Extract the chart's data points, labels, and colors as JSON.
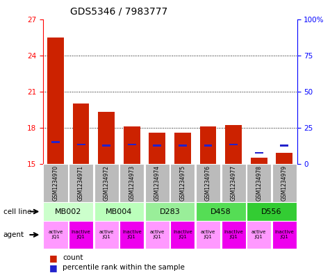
{
  "title": "GDS5346 / 7983777",
  "samples": [
    "GSM1234970",
    "GSM1234971",
    "GSM1234972",
    "GSM1234973",
    "GSM1234974",
    "GSM1234975",
    "GSM1234976",
    "GSM1234977",
    "GSM1234978",
    "GSM1234979"
  ],
  "red_bar_top": [
    25.5,
    20.0,
    19.3,
    18.1,
    17.6,
    17.6,
    18.1,
    18.2,
    15.5,
    15.9
  ],
  "blue_marker": [
    16.8,
    16.6,
    16.5,
    16.6,
    16.5,
    16.5,
    16.5,
    16.6,
    15.9,
    16.5
  ],
  "ymin": 15,
  "ymax": 27,
  "yticks": [
    15,
    18,
    21,
    24,
    27
  ],
  "pct_ticks_y": [
    15,
    18,
    21,
    24,
    27
  ],
  "pct_labels": [
    "0",
    "25",
    "50",
    "75",
    "100%"
  ],
  "cell_lines": [
    {
      "label": "MB002",
      "cols": [
        0,
        1
      ],
      "color": "#ccffcc"
    },
    {
      "label": "MB004",
      "cols": [
        2,
        3
      ],
      "color": "#bbffbb"
    },
    {
      "label": "D283",
      "cols": [
        4,
        5
      ],
      "color": "#99ee99"
    },
    {
      "label": "D458",
      "cols": [
        6,
        7
      ],
      "color": "#55dd55"
    },
    {
      "label": "D556",
      "cols": [
        8,
        9
      ],
      "color": "#33cc33"
    }
  ],
  "agents": [
    "active\nJQ1",
    "inactive\nJQ1",
    "active\nJQ1",
    "inactive\nJQ1",
    "active\nJQ1",
    "inactive\nJQ1",
    "active\nJQ1",
    "inactive\nJQ1",
    "active\nJQ1",
    "inactive\nJQ1"
  ],
  "agent_active_color": "#ff99ff",
  "agent_inactive_color": "#ee00ee",
  "bar_color": "#cc2200",
  "blue_color": "#2222cc",
  "sample_box_color": "#bbbbbb"
}
